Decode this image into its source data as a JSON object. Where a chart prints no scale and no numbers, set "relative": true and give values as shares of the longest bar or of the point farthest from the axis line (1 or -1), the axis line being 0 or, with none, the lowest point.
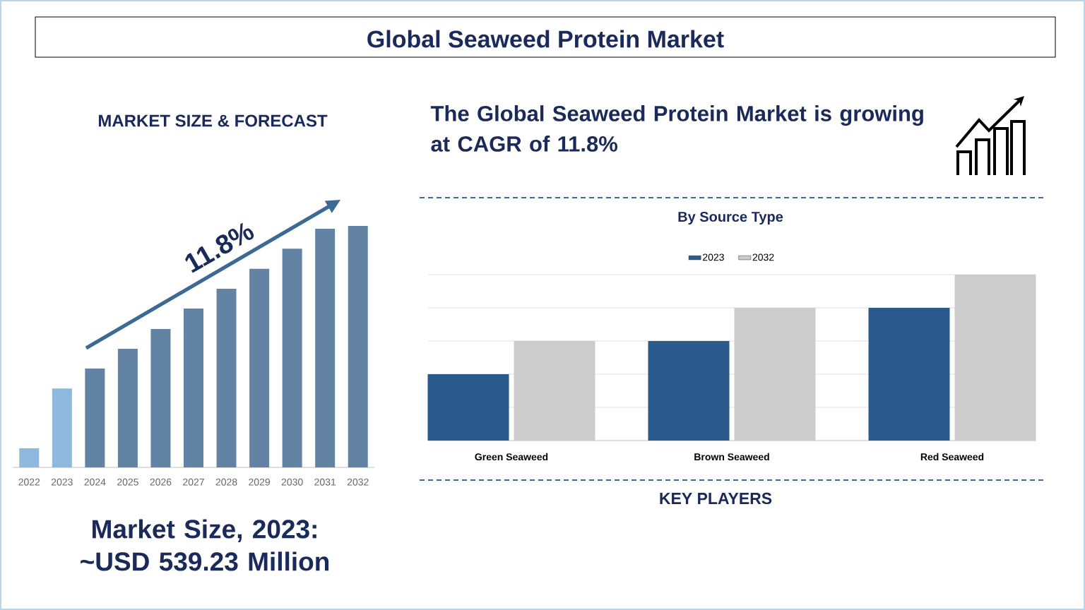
{
  "chart_data": [
    {
      "type": "bar",
      "title": "Global Seaweed Protein Market",
      "subtitle": "MARKET SIZE & FORECAST",
      "relative": true,
      "tick_labels": "x",
      "categories": [
        "2022",
        "2023",
        "2024",
        "2025",
        "2026",
        "2027",
        "2028",
        "2029",
        "2030",
        "2031",
        "2032"
      ],
      "values": [
        0.079,
        0.327,
        0.409,
        0.491,
        0.573,
        0.658,
        0.74,
        0.822,
        0.906,
        0.988,
        1.0
      ],
      "colors": [
        "#8fb8de",
        "#8fb8de",
        "#6283a3",
        "#6283a3",
        "#6283a3",
        "#6283a3",
        "#6283a3",
        "#6283a3",
        "#6283a3",
        "#6283a3",
        "#6283a3"
      ],
      "annotations": [
        "11.8%",
        "Market Size, 2023: ~USD 539.23 Million"
      ]
    },
    {
      "type": "bar",
      "title": "By Source Type",
      "relative": true,
      "tick_labels": "x",
      "grid": "y",
      "legend": "top",
      "categories": [
        "Green Seaweed",
        "Brown Seaweed",
        "Red Seaweed"
      ],
      "series": [
        {
          "name": "2023",
          "color": "#2a5b8c",
          "values": [
            0.4,
            0.6,
            0.8
          ]
        },
        {
          "name": "2032",
          "color": "#cccccc",
          "values": [
            0.6,
            0.8,
            1.0
          ]
        }
      ],
      "annotations": [
        "The Global Seaweed Protein Market is growing at CAGR of 11.8%",
        "KEY PLAYERS"
      ]
    }
  ]
}
